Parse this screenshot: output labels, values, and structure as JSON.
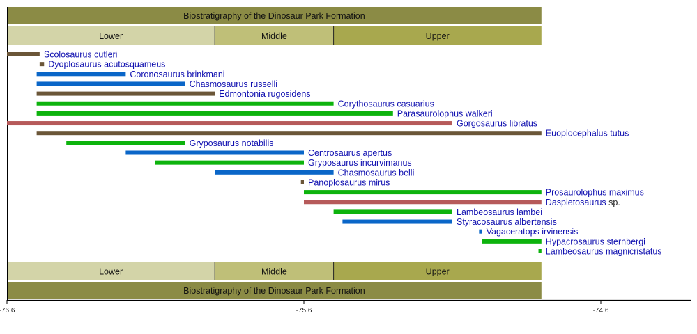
{
  "chart_data": {
    "type": "bar",
    "orientation": "horizontal-range",
    "title": "Biostratigraphy of the Dinosaur Park Formation",
    "xlim": [
      -76.6,
      -74.3
    ],
    "x_ticks": [
      -76.6,
      -75.6,
      -74.6
    ],
    "x_tick_labels": [
      "-76.6",
      "-75.6",
      "-74.6"
    ],
    "grid": false,
    "colors": {
      "ankylosaur": "#6b5638",
      "ceratopsian": "#0a66c8",
      "hadrosaur": "#0db30d",
      "tyrannosaur": "#b65a5a",
      "label": "#1010b0",
      "suffix": "#222222",
      "header": "#8b8b45",
      "lower": "#d3d4a8",
      "middle": "#bfbf78",
      "upper": "#a8a84e"
    },
    "stages": [
      {
        "label": "Lower",
        "start": -76.6,
        "end": -75.9,
        "color": "lower"
      },
      {
        "label": "Middle",
        "start": -75.9,
        "end": -75.5,
        "color": "middle"
      },
      {
        "label": "Upper",
        "start": -75.5,
        "end": -74.8,
        "color": "upper"
      }
    ],
    "header_range": [
      -76.6,
      -74.8
    ],
    "taxa": [
      {
        "label": "Scolosaurus cutleri",
        "start": -76.6,
        "end": -76.49,
        "group": "ankylosaur"
      },
      {
        "label": "Dyoplosaurus acutosquameus",
        "start": -76.49,
        "end": -76.475,
        "group": "ankylosaur"
      },
      {
        "label": "Coronosaurus brinkmani",
        "start": -76.5,
        "end": -76.2,
        "group": "ceratopsian"
      },
      {
        "label": "Chasmosaurus russelli",
        "start": -76.5,
        "end": -76.0,
        "group": "ceratopsian"
      },
      {
        "label": "Edmontonia rugosidens",
        "start": -76.5,
        "end": -75.9,
        "group": "ankylosaur"
      },
      {
        "label": "Corythosaurus casuarius",
        "start": -76.5,
        "end": -75.5,
        "group": "hadrosaur"
      },
      {
        "label": "Parasaurolophus walkeri",
        "start": -76.5,
        "end": -75.3,
        "group": "hadrosaur"
      },
      {
        "label": "Gorgosaurus libratus",
        "start": -76.6,
        "end": -75.1,
        "group": "tyrannosaur"
      },
      {
        "label": "Euoplocephalus tutus",
        "start": -76.5,
        "end": -74.8,
        "group": "ankylosaur"
      },
      {
        "label": "Gryposaurus notabilis",
        "start": -76.4,
        "end": -76.0,
        "group": "hadrosaur"
      },
      {
        "label": "Centrosaurus apertus",
        "start": -76.2,
        "end": -75.6,
        "group": "ceratopsian"
      },
      {
        "label": "Gryposaurus incurvimanus",
        "start": -76.1,
        "end": -75.6,
        "group": "hadrosaur"
      },
      {
        "label": "Chasmosaurus belli",
        "start": -75.9,
        "end": -75.5,
        "group": "ceratopsian"
      },
      {
        "label": "Panoplosaurus mirus",
        "start": -75.61,
        "end": -75.6,
        "group": "ankylosaur"
      },
      {
        "label": "Prosaurolophus maximus",
        "start": -75.6,
        "end": -74.8,
        "group": "hadrosaur"
      },
      {
        "label": "Daspletosaurus",
        "suffix": " sp.",
        "start": -75.6,
        "end": -74.8,
        "group": "tyrannosaur"
      },
      {
        "label": "Lambeosaurus lambei",
        "start": -75.5,
        "end": -75.1,
        "group": "hadrosaur"
      },
      {
        "label": "Styracosaurus albertensis",
        "start": -75.47,
        "end": -75.1,
        "group": "ceratopsian"
      },
      {
        "label": "Vagaceratops irvinensis",
        "start": -75.01,
        "end": -75.0,
        "group": "ceratopsian"
      },
      {
        "label": "Hypacrosaurus sternbergi",
        "start": -75.0,
        "end": -74.8,
        "group": "hadrosaur"
      },
      {
        "label": "Lambeosaurus magnicristatus",
        "start": -74.81,
        "end": -74.8,
        "group": "hadrosaur"
      }
    ]
  }
}
